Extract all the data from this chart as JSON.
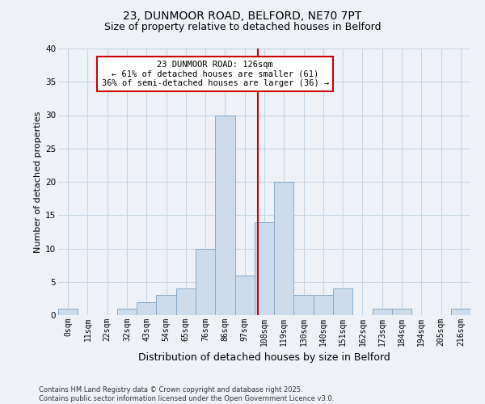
{
  "title_line1": "23, DUNMOOR ROAD, BELFORD, NE70 7PT",
  "title_line2": "Size of property relative to detached houses in Belford",
  "xlabel": "Distribution of detached houses by size in Belford",
  "ylabel": "Number of detached properties",
  "footer": "Contains HM Land Registry data © Crown copyright and database right 2025.\nContains public sector information licensed under the Open Government Licence v3.0.",
  "bin_labels": [
    "0sqm",
    "11sqm",
    "22sqm",
    "32sqm",
    "43sqm",
    "54sqm",
    "65sqm",
    "76sqm",
    "86sqm",
    "97sqm",
    "108sqm",
    "119sqm",
    "130sqm",
    "140sqm",
    "151sqm",
    "162sqm",
    "173sqm",
    "184sqm",
    "194sqm",
    "205sqm",
    "216sqm"
  ],
  "bar_values": [
    1,
    0,
    0,
    1,
    2,
    3,
    4,
    10,
    30,
    6,
    14,
    20,
    3,
    3,
    4,
    0,
    1,
    1,
    0,
    0,
    1
  ],
  "bar_color": "#ccdcec",
  "bar_edge_color": "#88aac8",
  "grid_color": "#c8d4e4",
  "background_color": "#eef2f8",
  "annotation_text": "23 DUNMOOR ROAD: 126sqm\n← 61% of detached houses are smaller (61)\n36% of semi-detached houses are larger (36) →",
  "vline_x_index": 9.65,
  "annotation_box_color": "#ffffff",
  "annotation_box_edge": "#cc0000",
  "vline_color": "#cc0000",
  "ylim": [
    0,
    40
  ],
  "yticks": [
    0,
    5,
    10,
    15,
    20,
    25,
    30,
    35,
    40
  ],
  "title1_fontsize": 10,
  "title2_fontsize": 9,
  "ylabel_fontsize": 8,
  "xlabel_fontsize": 9,
  "tick_fontsize": 7,
  "footer_fontsize": 6,
  "annotation_fontsize": 7.5
}
